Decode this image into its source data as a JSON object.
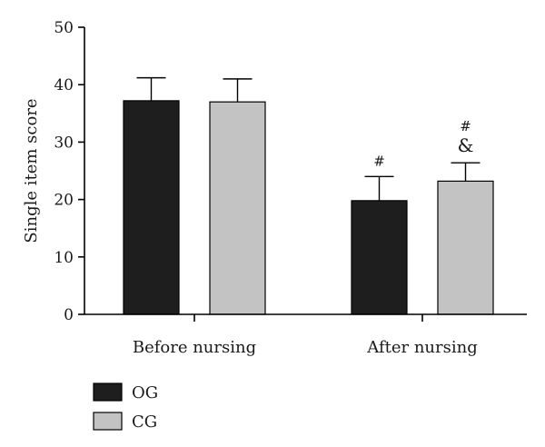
{
  "chart_data": {
    "type": "bar",
    "title": "",
    "xlabel": "",
    "ylabel": "Single item score",
    "ylim": [
      0,
      50
    ],
    "yticks": [
      0,
      10,
      20,
      30,
      40,
      50
    ],
    "grid": false,
    "legend_position": "bottom-left",
    "categories": [
      "Before nursing",
      "After nursing"
    ],
    "series": [
      {
        "name": "OG",
        "color": "#1e1e1e",
        "values": [
          37.2,
          19.8
        ],
        "errors": [
          4.0,
          4.2
        ],
        "annotations": [
          "",
          "#"
        ]
      },
      {
        "name": "CG",
        "color": "#c3c3c3",
        "values": [
          37.0,
          23.2
        ],
        "errors": [
          4.0,
          3.2
        ],
        "annotations": [
          "",
          "#\n&"
        ]
      }
    ]
  }
}
